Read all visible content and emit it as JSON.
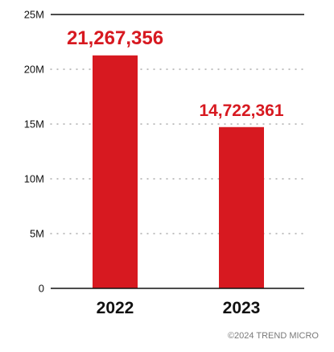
{
  "chart_data": {
    "type": "bar",
    "categories": [
      "2022",
      "2023"
    ],
    "values": [
      21267356,
      14722361
    ],
    "value_labels": [
      "21,267,356",
      "14,722,361"
    ],
    "yticks": [
      "0",
      "5M",
      "10M",
      "15M",
      "20M",
      "25M"
    ],
    "ytick_values": [
      0,
      5000000,
      10000000,
      15000000,
      20000000,
      25000000
    ],
    "ylim": [
      0,
      25000000
    ],
    "grid": "dotted",
    "bar_color": "#d71920",
    "label_color": "#d71920"
  },
  "credit": "©2024 TREND MICRO"
}
